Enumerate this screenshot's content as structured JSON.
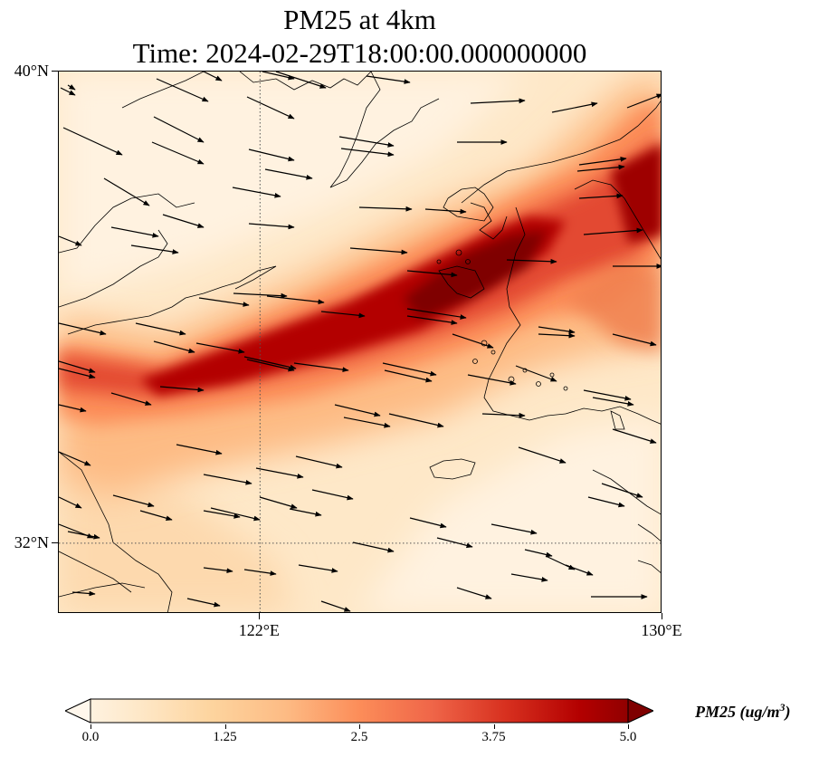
{
  "title": {
    "line1": "PM25 at 4km",
    "line2": "Time: 2024-02-29T18:00:00.000000000"
  },
  "map": {
    "extent": {
      "lon": [
        118,
        130
      ],
      "lat": [
        30.8,
        40
      ]
    },
    "lat_ticks": [
      {
        "value": 40,
        "label": "40°N"
      },
      {
        "value": 32,
        "label": "32°N"
      }
    ],
    "lon_ticks": [
      {
        "value": 122,
        "label": "122°E"
      },
      {
        "value": 130,
        "label": "130°E"
      }
    ],
    "gridlines": {
      "lon": [
        122
      ],
      "lat": [
        32
      ],
      "style": "dotted"
    },
    "field": "PM25",
    "plume_description": "high concentration band from west-southwest (~118E,34.5N) to northeast (~130E,38.8N)"
  },
  "colorbar": {
    "colormap": "OrRd",
    "colors": [
      "#fff7ec",
      "#fee8c8",
      "#fdd49e",
      "#fdbb84",
      "#fc8d59",
      "#ef6548",
      "#d7301f",
      "#b30000",
      "#7f0000"
    ],
    "ticks": [
      "0.0",
      "1.25",
      "2.5",
      "3.75",
      "5.0"
    ],
    "min": 0.0,
    "max": 5.0,
    "extend": "both",
    "label": "PM25 (ug/m",
    "label_sup": "3",
    "label_end": ")"
  }
}
